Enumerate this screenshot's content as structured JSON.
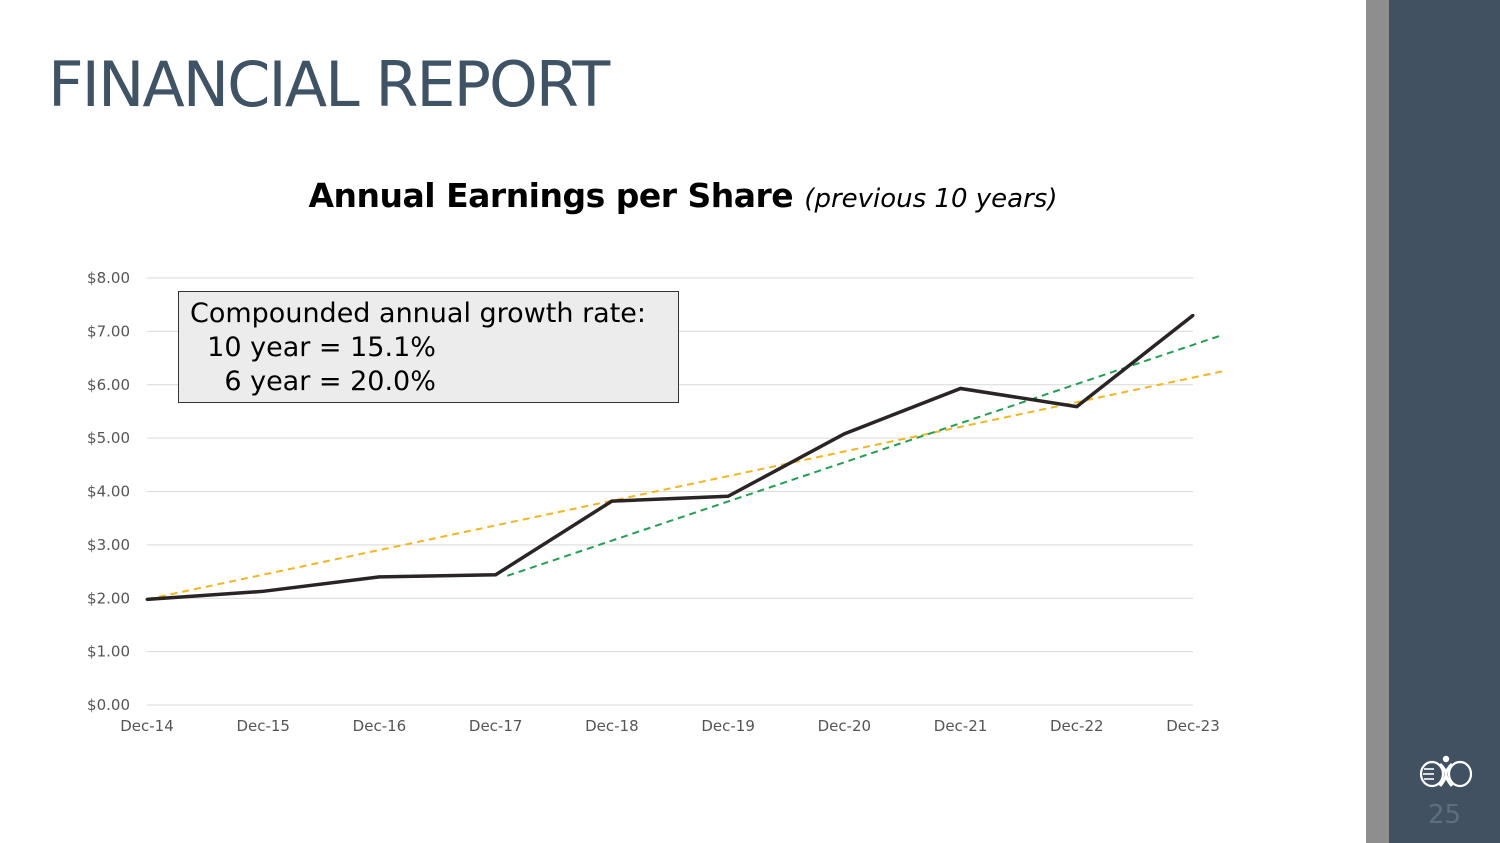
{
  "slide": {
    "title": "FINANCIAL REPORT",
    "page_number": "25"
  },
  "note": {
    "line1": "Compounded annual growth rate:",
    "line2": "  10 year = 15.1%",
    "line3": "    6 year = 20.0%"
  },
  "chart_data": {
    "type": "line",
    "title": "Annual Earnings per Share",
    "subtitle": "(previous 10 years)",
    "xlabel": "",
    "ylabel": "",
    "categories": [
      "Dec-14",
      "Dec-15",
      "Dec-16",
      "Dec-17",
      "Dec-18",
      "Dec-19",
      "Dec-20",
      "Dec-21",
      "Dec-22",
      "Dec-23"
    ],
    "y_tick_labels": [
      "$0.00",
      "$1.00",
      "$2.00",
      "$3.00",
      "$4.00",
      "$5.00",
      "$6.00",
      "$7.00",
      "$8.00"
    ],
    "ylim": [
      0,
      8
    ],
    "grid": true,
    "series": [
      {
        "values": [
          1.98,
          2.13,
          2.4,
          2.44,
          3.82,
          3.91,
          5.08,
          5.93,
          5.59,
          7.3
        ],
        "color": "#2b2424",
        "style": "solid"
      }
    ],
    "trendlines": [
      {
        "from_index": 0,
        "to_index": 9.25,
        "start": 1.98,
        "end": 6.25,
        "color": "#f2b620",
        "style": "dashed"
      },
      {
        "from_index": 3.1,
        "to_index": 9.25,
        "start": 2.42,
        "end": 6.93,
        "color": "#20a050",
        "style": "dashed"
      }
    ]
  },
  "colors": {
    "title": "#3f5366",
    "side_panel": "#415162",
    "side_stripe": "#8e8e8e",
    "grid": "#d9d9d9"
  },
  "icons": {
    "logo": "ribbon-logo-icon"
  }
}
